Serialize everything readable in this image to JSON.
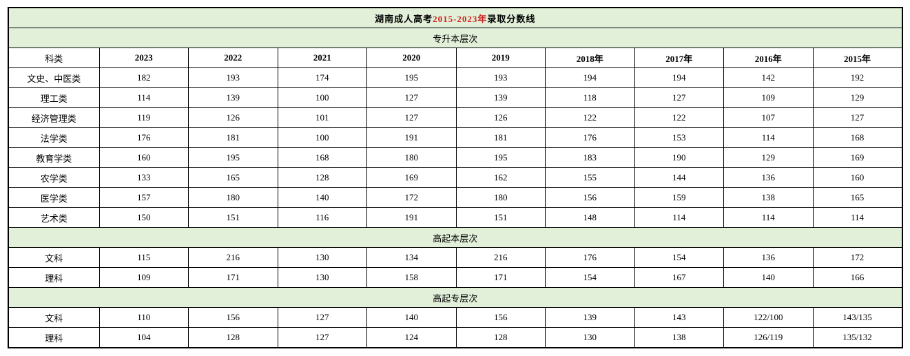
{
  "title": {
    "prefix": "湖南成人高考",
    "highlight": "2015-2023年",
    "suffix": "录取分数线"
  },
  "colors": {
    "section_background": "#e2efd9",
    "accent_red": "#d02420",
    "border": "#000000",
    "text": "#000000"
  },
  "table": {
    "header": [
      "科类",
      "2023",
      "2022",
      "2021",
      "2020",
      "2019",
      "2018年",
      "2017年",
      "2016年",
      "2015年"
    ],
    "sections": [
      {
        "label": "专升本层次",
        "rows": [
          [
            "文史、中医类",
            "182",
            "193",
            "174",
            "195",
            "193",
            "194",
            "194",
            "142",
            "192"
          ],
          [
            "理工类",
            "114",
            "139",
            "100",
            "127",
            "139",
            "118",
            "127",
            "109",
            "129"
          ],
          [
            "经济管理类",
            "119",
            "126",
            "101",
            "127",
            "126",
            "122",
            "122",
            "107",
            "127"
          ],
          [
            "法学类",
            "176",
            "181",
            "100",
            "191",
            "181",
            "176",
            "153",
            "114",
            "168"
          ],
          [
            "教育学类",
            "160",
            "195",
            "168",
            "180",
            "195",
            "183",
            "190",
            "129",
            "169"
          ],
          [
            "农学类",
            "133",
            "165",
            "128",
            "169",
            "162",
            "155",
            "144",
            "136",
            "160"
          ],
          [
            "医学类",
            "157",
            "180",
            "140",
            "172",
            "180",
            "156",
            "159",
            "138",
            "165"
          ],
          [
            "艺术类",
            "150",
            "151",
            "116",
            "191",
            "151",
            "148",
            "114",
            "114",
            "114"
          ]
        ]
      },
      {
        "label": "高起本层次",
        "rows": [
          [
            "文科",
            "115",
            "216",
            "130",
            "134",
            "216",
            "176",
            "154",
            "136",
            "172"
          ],
          [
            "理科",
            "109",
            "171",
            "130",
            "158",
            "171",
            "154",
            "167",
            "140",
            "166"
          ]
        ]
      },
      {
        "label": "高起专层次",
        "rows": [
          [
            "文科",
            "110",
            "156",
            "127",
            "140",
            "156",
            "139",
            "143",
            "122/100",
            "143/135"
          ],
          [
            "理科",
            "104",
            "128",
            "127",
            "124",
            "128",
            "130",
            "138",
            "126/119",
            "135/132"
          ]
        ]
      }
    ]
  }
}
